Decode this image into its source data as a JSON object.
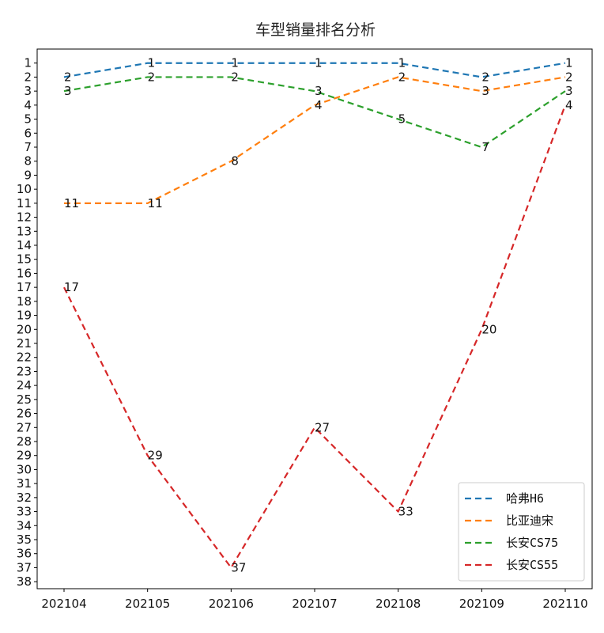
{
  "chart_data": {
    "type": "line",
    "title": "车型销量排名分析",
    "xlabel": "",
    "ylabel": "",
    "categories": [
      "202104",
      "202105",
      "202106",
      "202107",
      "202108",
      "202109",
      "202110"
    ],
    "y_ticks": [
      1,
      2,
      3,
      4,
      5,
      6,
      7,
      8,
      9,
      10,
      11,
      12,
      13,
      14,
      15,
      16,
      17,
      18,
      19,
      20,
      21,
      22,
      23,
      24,
      25,
      26,
      27,
      28,
      29,
      30,
      31,
      32,
      33,
      34,
      35,
      36,
      37,
      38
    ],
    "ylim": [
      0,
      38.5
    ],
    "y_inverted": true,
    "grid": false,
    "legend_position": "bottom-right",
    "line_style": "dashed",
    "series": [
      {
        "name": "哈弗H6",
        "color": "#1f77b4",
        "values": [
          2,
          1,
          1,
          1,
          1,
          2,
          1
        ]
      },
      {
        "name": "比亚迪宋",
        "color": "#ff7f0e",
        "values": [
          11,
          11,
          8,
          4,
          2,
          3,
          2
        ]
      },
      {
        "name": "长安CS75",
        "color": "#2ca02c",
        "values": [
          3,
          2,
          2,
          3,
          5,
          7,
          3
        ]
      },
      {
        "name": "长安CS55",
        "color": "#d62728",
        "values": [
          17,
          29,
          37,
          27,
          33,
          20,
          4
        ]
      }
    ]
  }
}
